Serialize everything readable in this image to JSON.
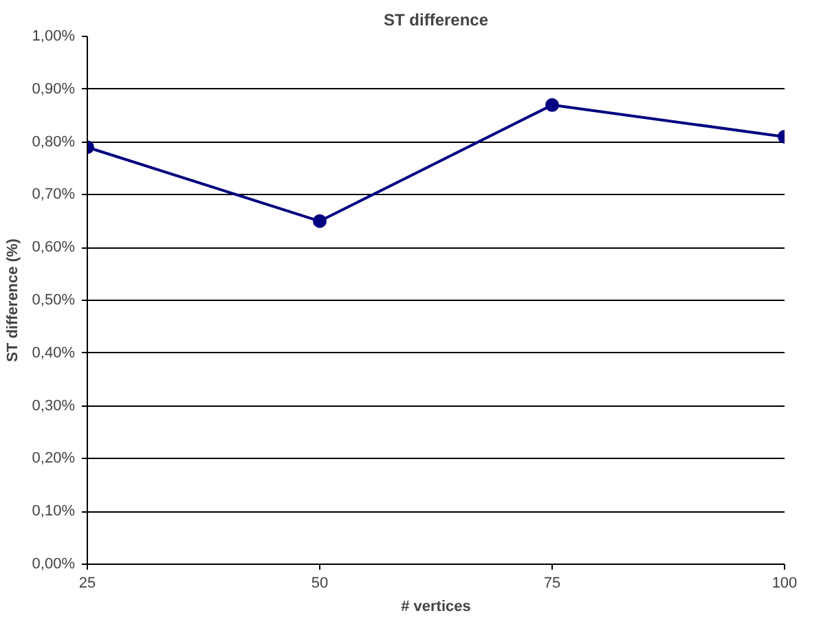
{
  "chart_data": {
    "type": "line",
    "title": "ST difference",
    "xlabel": "# vertices",
    "ylabel": "ST difference (%)",
    "x": [
      25,
      50,
      75,
      100
    ],
    "series": [
      {
        "color": "#000080",
        "values": [
          0.79,
          0.65,
          0.87,
          0.81
        ]
      }
    ],
    "xlim": [
      25,
      100
    ],
    "xticks": [
      25,
      50,
      75,
      100
    ],
    "ylim": [
      0,
      1
    ],
    "yticks": [
      {
        "value": 0,
        "label": "0,00%"
      },
      {
        "value": 0.1,
        "label": "0,10%"
      },
      {
        "value": 0.2,
        "label": "0,20%"
      },
      {
        "value": 0.3,
        "label": "0,30%"
      },
      {
        "value": 0.4,
        "label": "0,40%"
      },
      {
        "value": 0.5,
        "label": "0,50%"
      },
      {
        "value": 0.6,
        "label": "0,60%"
      },
      {
        "value": 0.7,
        "label": "0,70%"
      },
      {
        "value": 0.8,
        "label": "0,80%"
      },
      {
        "value": 0.9,
        "label": "0,90%"
      },
      {
        "value": 1,
        "label": "1,00%"
      }
    ],
    "grid": "y",
    "marker": "circle",
    "line_style": "solid"
  }
}
